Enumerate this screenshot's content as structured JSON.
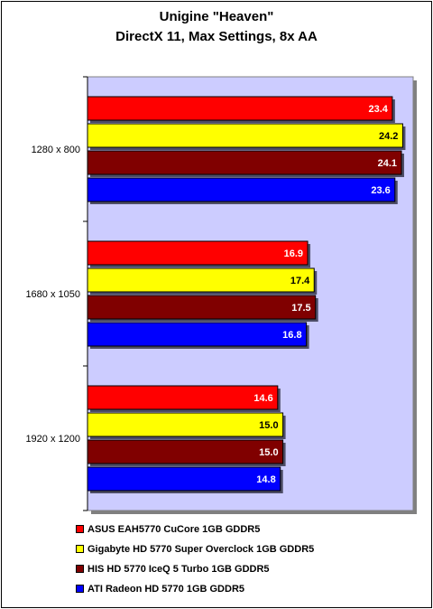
{
  "chart_data": {
    "type": "bar",
    "orientation": "horizontal",
    "title": "Unigine \"Heaven\"",
    "subtitle": "DirectX 11, Max Settings, 8x AA",
    "categories": [
      "1280 x 800",
      "1680 x 1050",
      "1920 x 1200"
    ],
    "series": [
      {
        "name": "ASUS EAH5770 CuCore 1GB GDDR5",
        "color": "#ff0000",
        "label_color": "#ffffff",
        "values": [
          23.4,
          16.9,
          14.6
        ]
      },
      {
        "name": "Gigabyte HD 5770 Super Overclock 1GB GDDR5",
        "color": "#ffff00",
        "label_color": "#000000",
        "values": [
          24.2,
          17.4,
          15.0
        ]
      },
      {
        "name": "HIS HD 5770 IceQ 5 Turbo 1GB GDDR5",
        "color": "#800000",
        "label_color": "#ffffff",
        "values": [
          24.1,
          17.5,
          15.0
        ]
      },
      {
        "name": "ATI Radeon HD 5770 1GB GDDR5",
        "color": "#0000ff",
        "label_color": "#ffffff",
        "values": [
          23.6,
          16.8,
          14.8
        ]
      }
    ],
    "xlim": [
      0,
      25
    ],
    "plot_background": "#ccccff",
    "legend_position": "bottom"
  }
}
